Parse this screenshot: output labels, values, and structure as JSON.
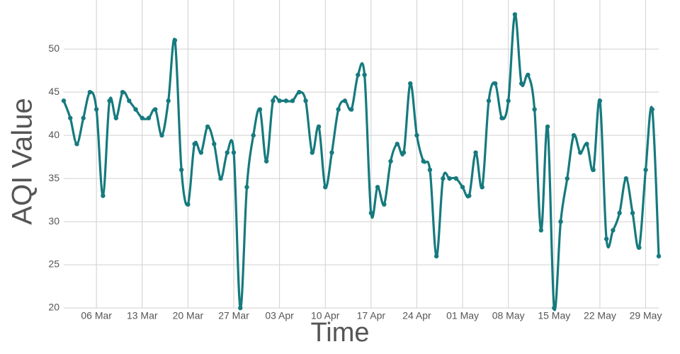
{
  "chart_data": {
    "type": "line",
    "xlabel": "Time",
    "ylabel": "AQI Value",
    "categories": [
      null,
      null,
      null,
      null,
      null,
      "06 Mar",
      null,
      null,
      null,
      null,
      null,
      null,
      "13 Mar",
      null,
      null,
      null,
      null,
      null,
      null,
      "20 Mar",
      null,
      null,
      null,
      null,
      null,
      null,
      "27 Mar",
      null,
      null,
      null,
      null,
      null,
      null,
      "03 Apr",
      null,
      null,
      null,
      null,
      null,
      null,
      "10 Apr",
      null,
      null,
      null,
      null,
      null,
      null,
      "17 Apr",
      null,
      null,
      null,
      null,
      null,
      null,
      "24 Apr",
      null,
      null,
      null,
      null,
      null,
      null,
      "01 May",
      null,
      null,
      null,
      null,
      null,
      null,
      "08 May",
      null,
      null,
      null,
      null,
      null,
      null,
      "15 May",
      null,
      null,
      null,
      null,
      null,
      null,
      "22 May",
      null,
      null,
      null,
      null,
      null,
      null,
      "29 May",
      null,
      null
    ],
    "series": [
      {
        "name": "AQI",
        "color": "#167a7e",
        "values": [
          44,
          42,
          39,
          42,
          45,
          43,
          33,
          44,
          42,
          45,
          44,
          43,
          42,
          42,
          43,
          40,
          44,
          51,
          36,
          32,
          39,
          38,
          41,
          39,
          35,
          38,
          38,
          20,
          34,
          40,
          43,
          37,
          44,
          44,
          44,
          44,
          45,
          44,
          38,
          41,
          34,
          38,
          43,
          44,
          43,
          47,
          47,
          31,
          34,
          32,
          37,
          39,
          38,
          46,
          40,
          37,
          36,
          26,
          35,
          35,
          35,
          34,
          33,
          38,
          34,
          44,
          46,
          42,
          44,
          54,
          46,
          47,
          43,
          29,
          41,
          20,
          30,
          35,
          40,
          38,
          39,
          36,
          44,
          28,
          29,
          31,
          35,
          31,
          27,
          36,
          43,
          26
        ]
      }
    ],
    "ylim": [
      20,
      54.2
    ],
    "yticks": [
      20,
      25,
      30,
      35,
      40,
      45,
      50
    ],
    "grid": true
  }
}
